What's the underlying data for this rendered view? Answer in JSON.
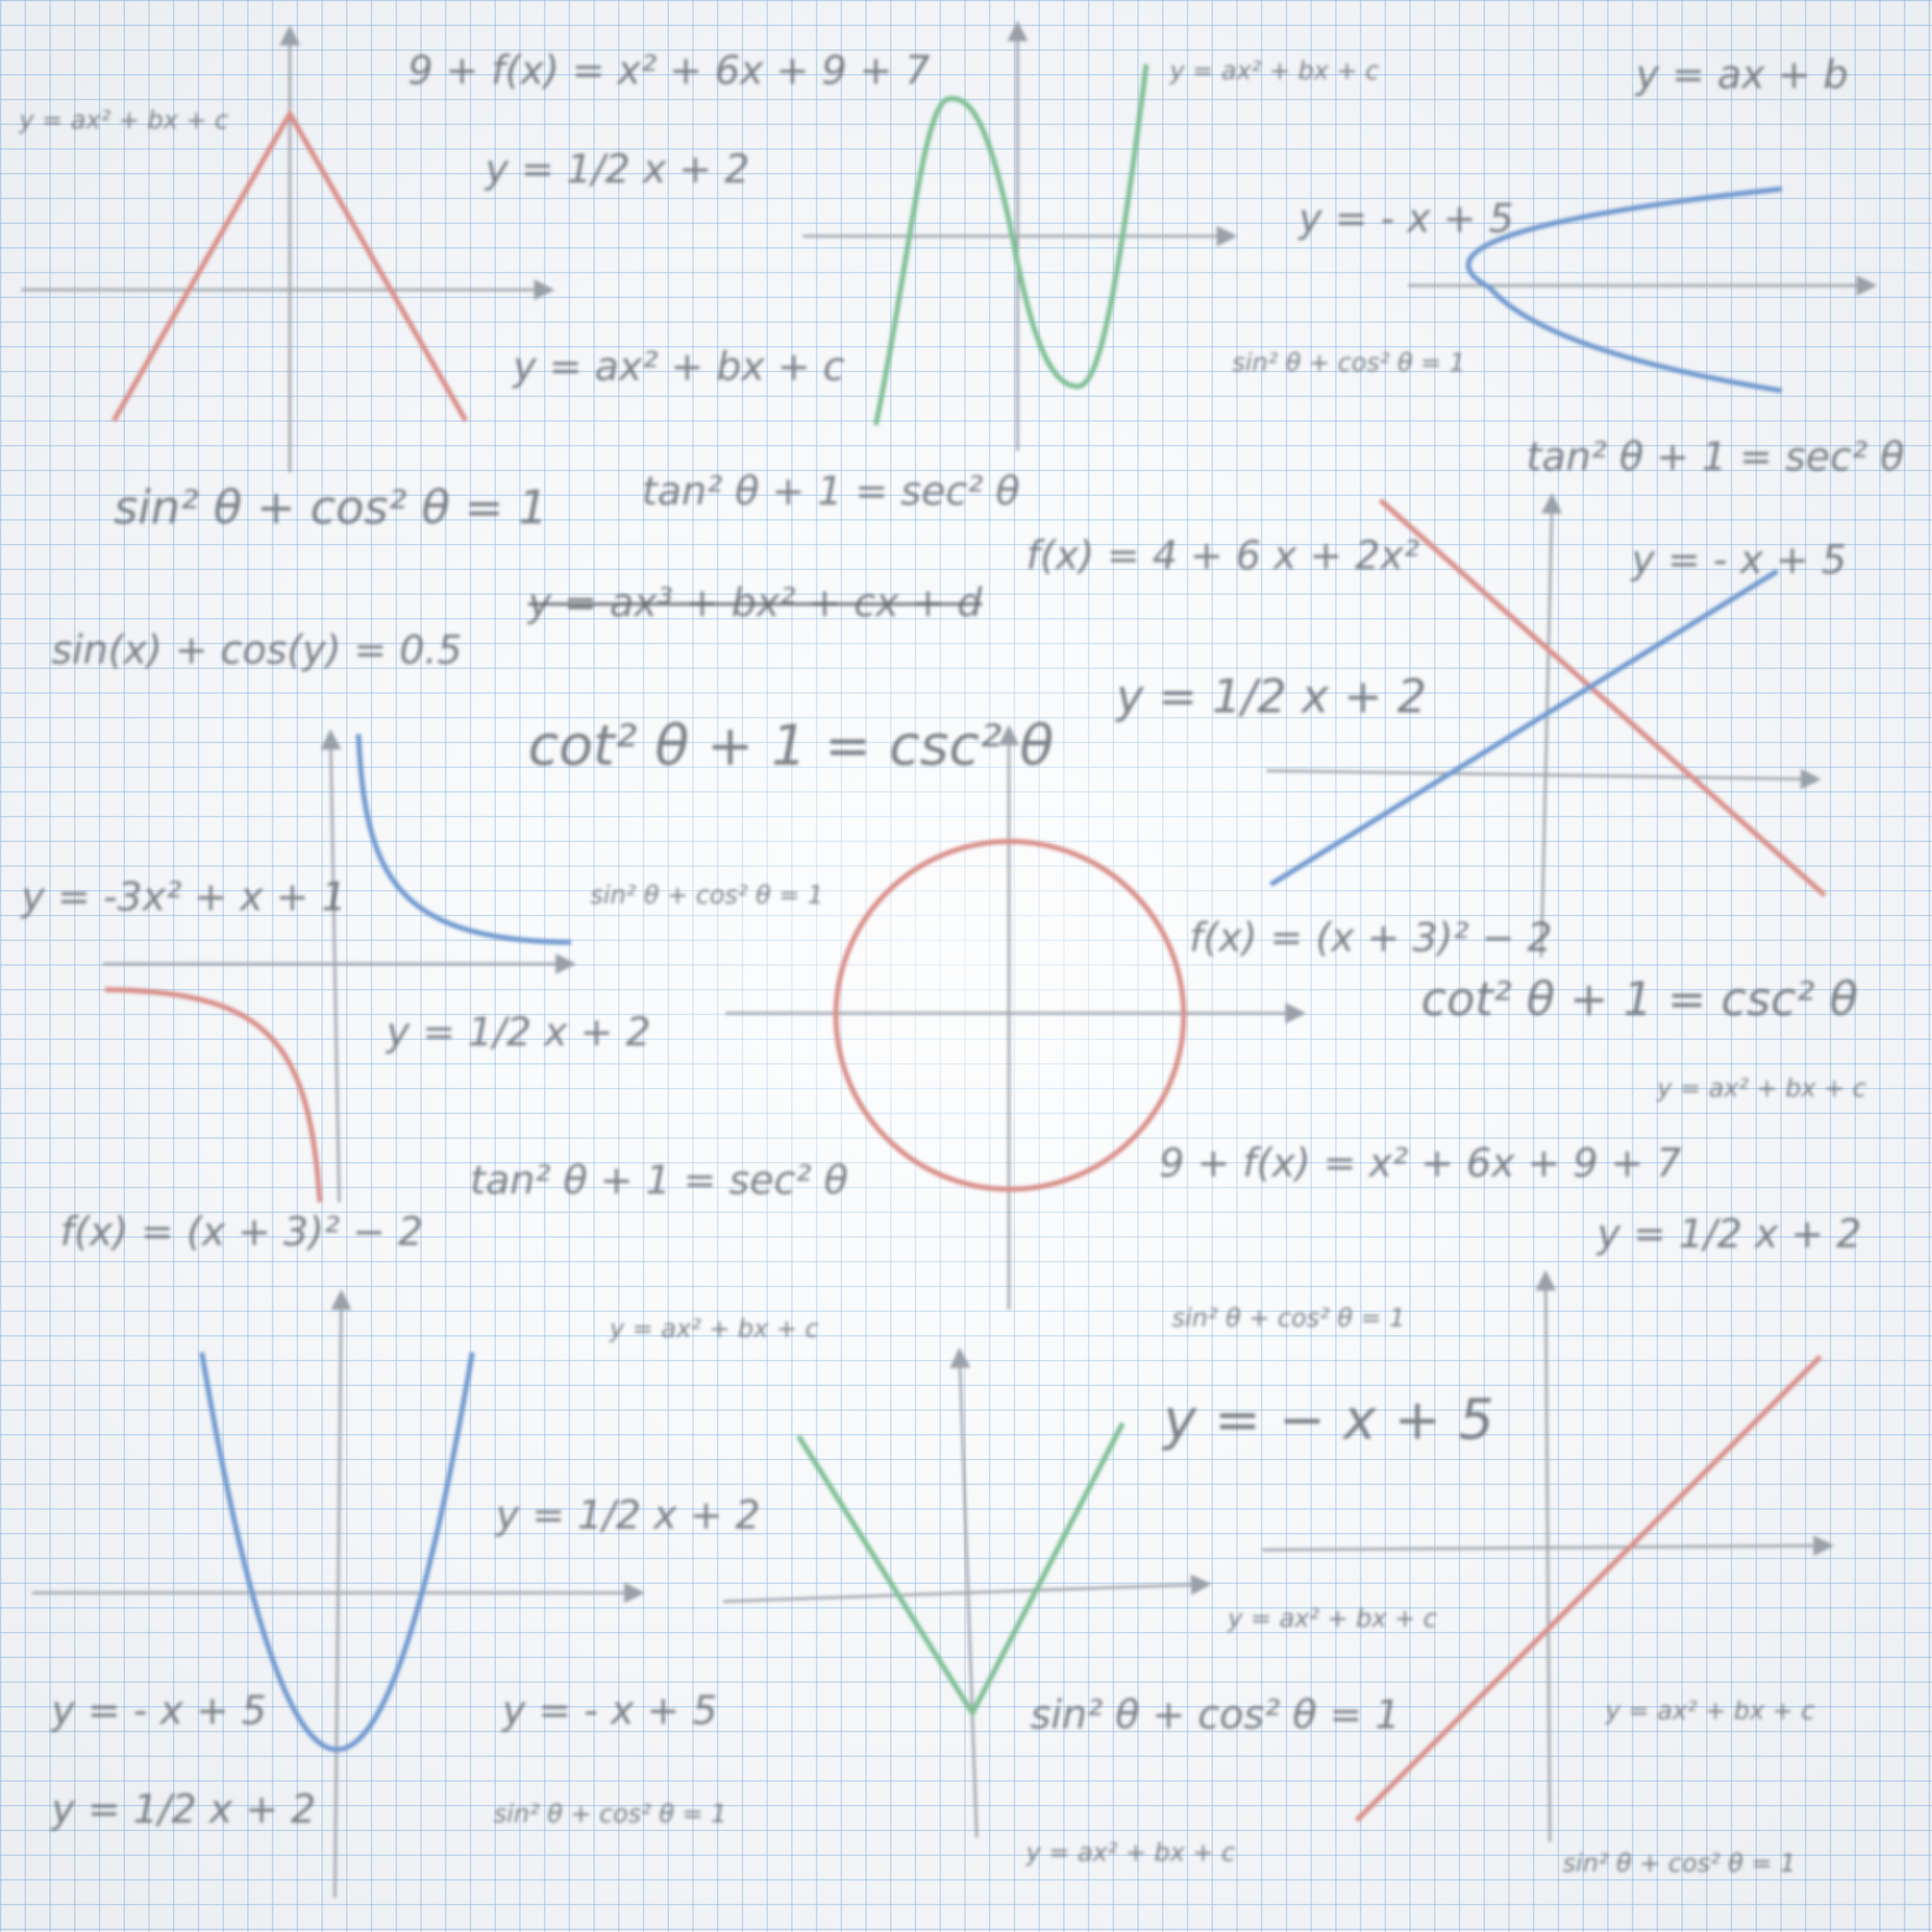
{
  "background": {
    "paper_color": "#f6f8fa",
    "grid_color": "#78aadc"
  },
  "colors": {
    "red": "#d98f8a",
    "green": "#7fbf95",
    "blue": "#7199cf",
    "axis": "#9aa0a8",
    "text": "#5a6068"
  },
  "equations": [
    "y = ax² + bx + c",
    "9 + f(x) = x² + 6x + 9 + 7",
    "y = 1/2 x + 2",
    "y = ax² + bx + c",
    "y = ax² + bx + c",
    "y = ax + b",
    "y = - x + 5",
    "sin² θ + cos² θ = 1",
    "tan² θ + 1 = sec² θ",
    "sin² θ + cos² θ = 1",
    "tan² θ + 1 = sec² θ",
    "f(x) = 4 + 6 x + 2x²",
    "y = - x + 5",
    "y = ax³ + bx² + cx + d",
    "sin(x) + cos(y) = 0.5",
    "y = 1/2 x + 2",
    "cot² θ + 1 = csc² θ",
    "y = -3x² + x + 1",
    "sin² θ + cos² θ = 1",
    "f(x) = (x + 3)² − 2",
    "cot² θ + 1 = csc² θ",
    "y = 1/2 x + 2",
    "y = ax² + bx + c",
    "tan² θ + 1 = sec² θ",
    "9 + f(x) = x² + 6x + 9 + 7",
    "f(x) = (x + 3)² − 2",
    "y = 1/2 x + 2",
    "y = ax² + bx + c",
    "sin² θ + cos² θ = 1",
    "y = − x + 5",
    "y = 1/2 x + 2",
    "y = ax² + bx + c",
    "y = - x + 5",
    "y = - x + 5",
    "sin² θ + cos² θ = 1",
    "y = ax² + bx + c",
    "y = 1/2 x + 2",
    "sin² θ + cos² θ = 1",
    "y = ax² + bx + c",
    "sin² θ + cos² θ = 1"
  ],
  "graphs": [
    {
      "name": "abs-peak-graph",
      "curve": "inverted absolute value",
      "color": "red"
    },
    {
      "name": "cubic-graph",
      "curve": "cubic",
      "color": "green"
    },
    {
      "name": "sideways-parabola-graph",
      "curve": "sideways parabola",
      "color": "blue"
    },
    {
      "name": "crossing-lines-graph",
      "curve": "two crossing lines",
      "color": "red and blue"
    },
    {
      "name": "hyperbola-graph",
      "curve": "hyperbola",
      "color": "blue and red"
    },
    {
      "name": "circle-graph",
      "curve": "circle",
      "color": "red"
    },
    {
      "name": "parabola-graph",
      "curve": "parabola",
      "color": "blue"
    },
    {
      "name": "abs-valley-graph",
      "curve": "absolute value",
      "color": "green"
    },
    {
      "name": "diagonal-line-graph",
      "curve": "line",
      "color": "red"
    }
  ]
}
